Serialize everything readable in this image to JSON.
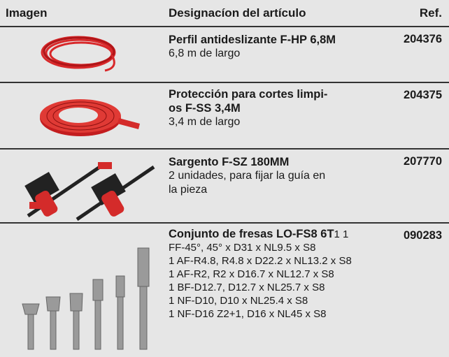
{
  "header": {
    "image": "Imagen",
    "designation": "Designacíon del artículo",
    "ref": "Ref."
  },
  "rows": [
    {
      "title": "Perfil antideslizante F-HP 6,8M",
      "description": [
        "6,8 m de largo"
      ],
      "ref": "204376"
    },
    {
      "title_lines": [
        "Protección para cortes limpi-",
        "os F-SS 3,4M"
      ],
      "description": [
        "3,4 m de largo"
      ],
      "ref": "204375"
    },
    {
      "title": "Sargento F-SZ 180MM",
      "description": [
        "2 unidades, para fijar la guía en",
        "la pieza"
      ],
      "ref": "207770"
    },
    {
      "title": "Conjunto de fresas LO-FS8 6T",
      "description": [
        "1 1",
        "FF-45°, 45° x D31 x NL9.5 x S8",
        "1 AF-R4.8, R4.8 x D22.2 x NL13.2 x S8",
        "1 AF-R2, R2 x D16.7 x NL12.7 x S8",
        "1 BF-D12.7, D12.7 x NL25.7 x S8",
        "1 NF-D10, D10 x NL25.4 x S8",
        "1 NF-D16 Z2+1, D16 x NL45 x S8"
      ],
      "ref": "090283"
    }
  ]
}
